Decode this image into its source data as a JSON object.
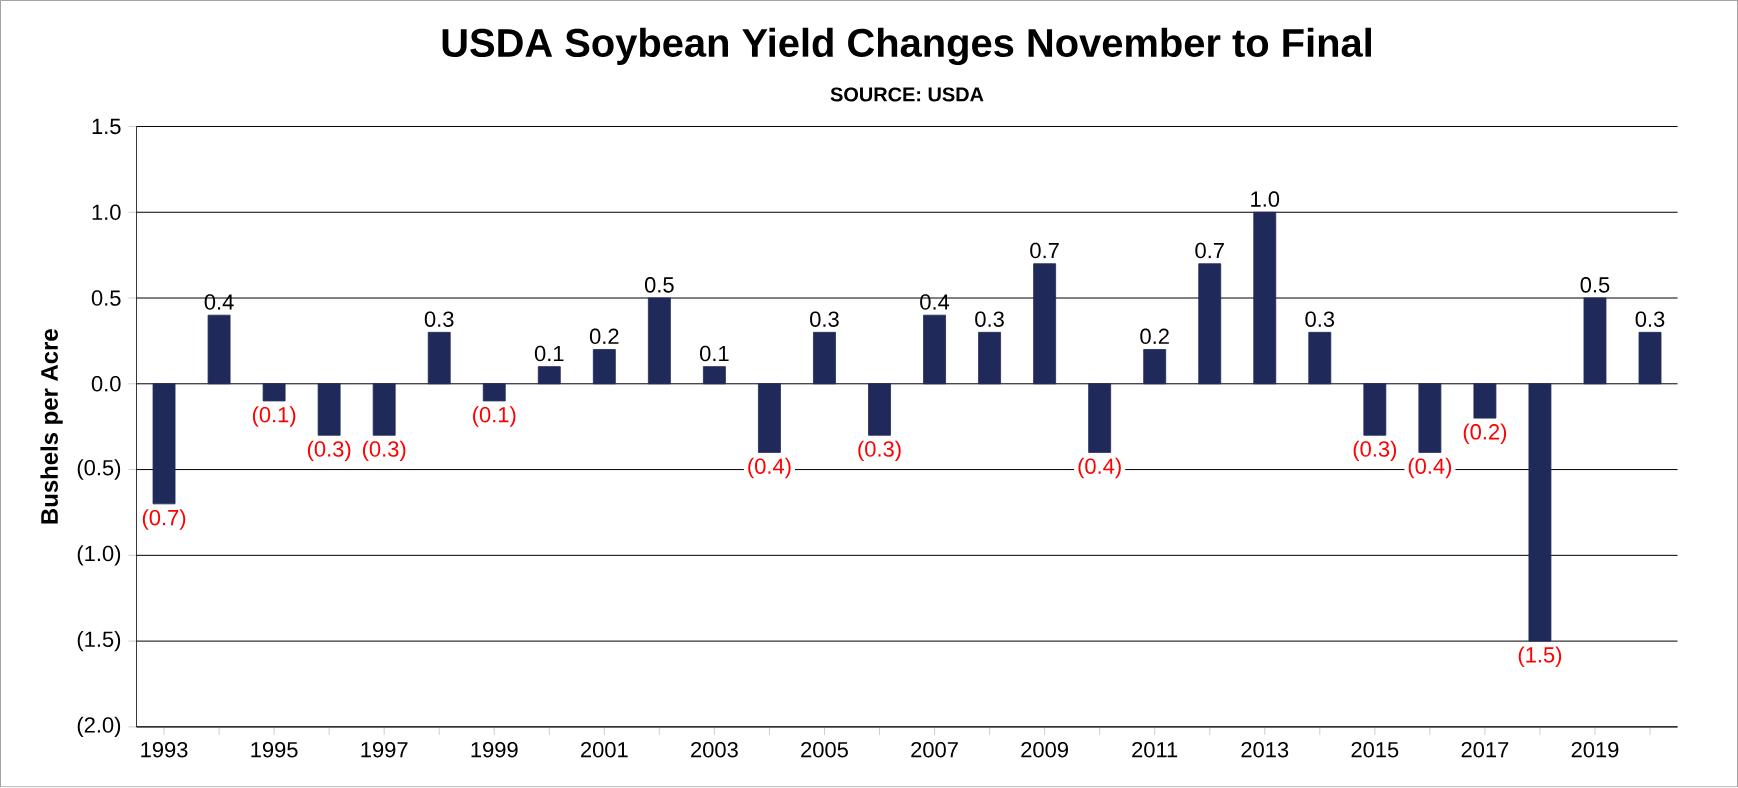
{
  "chart_data": {
    "type": "bar",
    "title": "USDA Soybean Yield Changes November to Final",
    "subtitle": "SOURCE: USDA",
    "ylabel": "Bushels per Acre",
    "categories": [
      "1993",
      null,
      "1995",
      null,
      "1997",
      null,
      "1999",
      null,
      "2001",
      null,
      "2003",
      null,
      "2005",
      null,
      "2007",
      null,
      "2009",
      null,
      "2011",
      null,
      "2013",
      null,
      "2015",
      null,
      "2017",
      null,
      "2019",
      null
    ],
    "values": [
      -0.7,
      0.4,
      -0.1,
      -0.3,
      -0.3,
      0.3,
      -0.1,
      0.1,
      0.2,
      0.5,
      0.1,
      -0.4,
      0.3,
      -0.3,
      0.4,
      0.3,
      0.7,
      -0.4,
      0.2,
      0.7,
      1.0,
      0.3,
      -0.3,
      -0.4,
      -0.2,
      -1.5,
      0.5,
      0.3
    ],
    "value_labels": [
      "(0.7)",
      "0.4",
      "(0.1)",
      "(0.3)",
      "(0.3)",
      "0.3",
      "(0.1)",
      "0.1",
      "0.2",
      "0.5",
      "0.1",
      "(0.4)",
      "0.3",
      "(0.3)",
      "0.4",
      "0.3",
      "0.7",
      "(0.4)",
      "0.2",
      "0.7",
      "1.0",
      "0.3",
      "(0.3)",
      "(0.4)",
      "(0.2)",
      "(1.5)",
      "0.5",
      "0.3"
    ],
    "color": "#1f2a5a",
    "ylim": [
      -2.0,
      1.5
    ],
    "yticks": [
      {
        "value": -2.0,
        "label": "(2.0)"
      },
      {
        "value": -1.5,
        "label": "(1.5)"
      },
      {
        "value": -1.0,
        "label": "(1.0)"
      },
      {
        "value": -0.5,
        "label": "(0.5)"
      },
      {
        "value": 0.0,
        "label": "0.0"
      },
      {
        "value": 0.5,
        "label": "0.5"
      },
      {
        "value": 1.0,
        "label": "1.0"
      },
      {
        "value": 1.5,
        "label": "1.5"
      }
    ],
    "grid": "y"
  }
}
